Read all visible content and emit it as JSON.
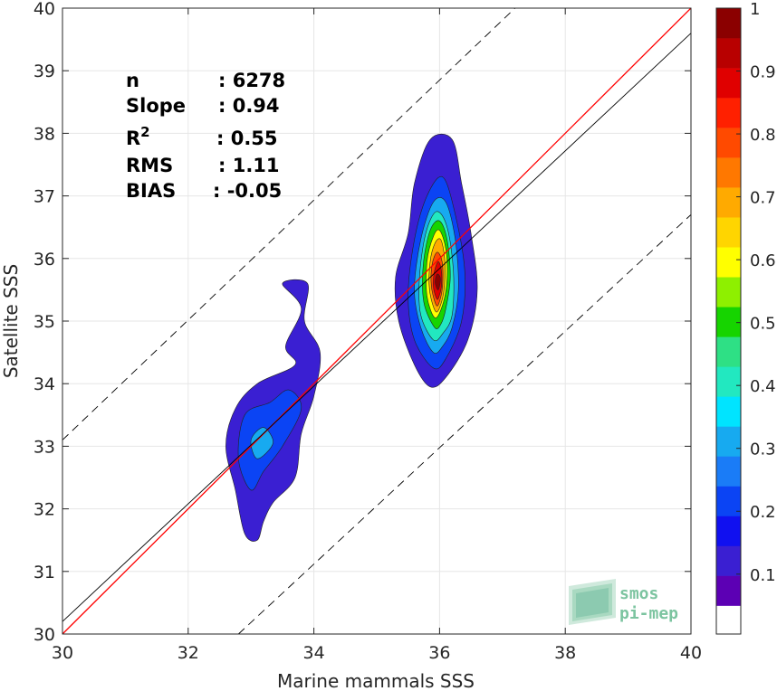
{
  "chart_data": {
    "type": "heatmap",
    "subtype": "normalized 2D density contour (scatter density)",
    "xlabel": "Marine mammals SSS",
    "ylabel": "Satellite SSS",
    "xlim": [
      30,
      40
    ],
    "ylim": [
      30,
      40
    ],
    "xticks": [
      "30",
      "32",
      "34",
      "36",
      "38",
      "40"
    ],
    "yticks": [
      "30",
      "31",
      "32",
      "33",
      "34",
      "35",
      "36",
      "37",
      "38",
      "39",
      "40"
    ],
    "grid": true,
    "stats": [
      {
        "label": "n",
        "value": ": 6278"
      },
      {
        "label": "Slope",
        "value": ": 0.94"
      },
      {
        "label": "R",
        "sup": "2",
        "value": ": 0.55"
      },
      {
        "label": "RMS",
        "value": ": 1.11"
      },
      {
        "label": "BIAS",
        "value": ": -0.05"
      }
    ],
    "lines": [
      {
        "role": "one-to-one",
        "color": "#ff0000",
        "style": "solid",
        "slope": 1,
        "intercept": 0
      },
      {
        "role": "regression fit",
        "color": "#000000",
        "style": "solid",
        "points": [
          [
            30,
            30.2
          ],
          [
            40,
            39.6
          ]
        ]
      },
      {
        "role": "upper bound",
        "color": "#000000",
        "style": "dashed",
        "points": [
          [
            30,
            33.1
          ],
          [
            37.2,
            40.0
          ]
        ]
      },
      {
        "role": "lower bound",
        "color": "#000000",
        "style": "dashed",
        "points": [
          [
            32.8,
            30.0
          ],
          [
            40,
            36.7
          ]
        ]
      }
    ],
    "clusters": [
      {
        "center": [
          33.25,
          33.0
        ],
        "levels": [
          {
            "level": 0.05,
            "points": [
              [
                33.1,
                31.5
              ],
              [
                32.9,
                31.6
              ],
              [
                32.75,
                32.3
              ],
              [
                32.6,
                33.0
              ],
              [
                32.75,
                33.6
              ],
              [
                33.1,
                34.0
              ],
              [
                33.7,
                34.3
              ],
              [
                33.55,
                34.6
              ],
              [
                33.8,
                35.2
              ],
              [
                33.5,
                35.6
              ],
              [
                33.9,
                35.6
              ],
              [
                33.85,
                35.0
              ],
              [
                34.1,
                34.5
              ],
              [
                34.0,
                33.8
              ],
              [
                33.8,
                33.2
              ],
              [
                33.7,
                32.5
              ],
              [
                33.35,
                32.1
              ],
              [
                33.2,
                31.8
              ]
            ]
          },
          {
            "level": 0.15,
            "points": [
              [
                33.0,
                32.3
              ],
              [
                32.8,
                32.8
              ],
              [
                32.9,
                33.5
              ],
              [
                33.3,
                33.7
              ],
              [
                33.6,
                33.9
              ],
              [
                33.8,
                33.6
              ],
              [
                33.5,
                33.0
              ],
              [
                33.2,
                32.6
              ]
            ]
          },
          {
            "level": 0.25,
            "points": [
              [
                33.1,
                32.8
              ],
              [
                33.0,
                33.1
              ],
              [
                33.2,
                33.3
              ],
              [
                33.35,
                33.05
              ]
            ]
          }
        ]
      },
      {
        "center": [
          35.95,
          35.65
        ],
        "levels": [
          {
            "level": 0.05,
            "points": [
              [
                35.85,
                33.95
              ],
              [
                35.6,
                34.3
              ],
              [
                35.35,
                35.0
              ],
              [
                35.3,
                35.7
              ],
              [
                35.5,
                36.4
              ],
              [
                35.6,
                37.2
              ],
              [
                35.85,
                37.9
              ],
              [
                36.2,
                37.9
              ],
              [
                36.35,
                37.2
              ],
              [
                36.5,
                36.4
              ],
              [
                36.6,
                35.5
              ],
              [
                36.45,
                34.7
              ],
              [
                36.1,
                34.1
              ]
            ]
          },
          {
            "level": 0.15,
            "points": [
              [
                35.9,
                34.25
              ],
              [
                35.6,
                34.7
              ],
              [
                35.5,
                35.4
              ],
              [
                35.6,
                36.3
              ],
              [
                35.8,
                37.0
              ],
              [
                36.05,
                37.3
              ],
              [
                36.25,
                36.7
              ],
              [
                36.4,
                35.8
              ],
              [
                36.35,
                35.0
              ],
              [
                36.1,
                34.4
              ]
            ]
          },
          {
            "level": 0.25,
            "points": [
              [
                35.9,
                34.5
              ],
              [
                35.7,
                34.9
              ],
              [
                35.6,
                35.5
              ],
              [
                35.7,
                36.3
              ],
              [
                35.9,
                36.9
              ],
              [
                36.1,
                36.9
              ],
              [
                36.25,
                36.3
              ],
              [
                36.3,
                35.5
              ],
              [
                36.2,
                34.9
              ],
              [
                36.05,
                34.6
              ]
            ]
          },
          {
            "level": 0.35,
            "points": [
              [
                35.9,
                34.7
              ],
              [
                35.7,
                35.1
              ],
              [
                35.68,
                35.7
              ],
              [
                35.78,
                36.4
              ],
              [
                35.95,
                36.75
              ],
              [
                36.12,
                36.5
              ],
              [
                36.22,
                35.8
              ],
              [
                36.2,
                35.1
              ],
              [
                36.05,
                34.8
              ]
            ]
          },
          {
            "level": 0.45,
            "points": [
              [
                35.92,
                34.9
              ],
              [
                35.75,
                35.3
              ],
              [
                35.74,
                35.9
              ],
              [
                35.85,
                36.45
              ],
              [
                36.0,
                36.6
              ],
              [
                36.12,
                36.3
              ],
              [
                36.17,
                35.7
              ],
              [
                36.1,
                35.2
              ],
              [
                36.02,
                34.95
              ]
            ]
          },
          {
            "level": 0.55,
            "points": [
              [
                35.93,
                35.05
              ],
              [
                35.8,
                35.4
              ],
              [
                35.8,
                35.95
              ],
              [
                35.9,
                36.35
              ],
              [
                36.0,
                36.45
              ],
              [
                36.1,
                36.15
              ],
              [
                36.12,
                35.7
              ],
              [
                36.06,
                35.3
              ]
            ]
          },
          {
            "level": 0.65,
            "points": [
              [
                35.94,
                35.15
              ],
              [
                35.84,
                35.5
              ],
              [
                35.85,
                35.95
              ],
              [
                35.93,
                36.25
              ],
              [
                36.02,
                36.3
              ],
              [
                36.08,
                36.0
              ],
              [
                36.08,
                35.6
              ],
              [
                36.03,
                35.3
              ]
            ]
          },
          {
            "level": 0.75,
            "points": [
              [
                35.95,
                35.25
              ],
              [
                35.87,
                35.55
              ],
              [
                35.88,
                35.9
              ],
              [
                35.96,
                36.1
              ],
              [
                36.04,
                35.95
              ],
              [
                36.05,
                35.6
              ],
              [
                36.01,
                35.35
              ]
            ]
          },
          {
            "level": 0.85,
            "points": [
              [
                35.96,
                35.35
              ],
              [
                35.9,
                35.55
              ],
              [
                35.92,
                35.8
              ],
              [
                35.98,
                35.95
              ],
              [
                36.03,
                35.8
              ],
              [
                36.03,
                35.55
              ],
              [
                36.0,
                35.42
              ]
            ]
          },
          {
            "level": 0.95,
            "points": [
              [
                35.97,
                35.5
              ],
              [
                35.93,
                35.62
              ],
              [
                35.96,
                35.75
              ],
              [
                36.01,
                35.7
              ],
              [
                36.0,
                35.56
              ]
            ]
          }
        ]
      }
    ],
    "colorbar": {
      "ticks": [
        "0.1",
        "0.2",
        "0.3",
        "0.4",
        "0.5",
        "0.6",
        "0.7",
        "0.8",
        "0.9",
        "1"
      ],
      "range": [
        0,
        1
      ],
      "bottom_color": "#ffffff",
      "colors": [
        "#5c00b4",
        "#3a1fd2",
        "#1010f0",
        "#0b44f4",
        "#1a7cf7",
        "#17aaf0",
        "#00e4ff",
        "#22e8c0",
        "#2ee085",
        "#16d400",
        "#8ef000",
        "#ffff00",
        "#ffd500",
        "#ffaa00",
        "#ff7800",
        "#ff4a00",
        "#ff2000",
        "#e00000",
        "#b80000",
        "#8b0000"
      ]
    },
    "logo": {
      "line1": "smos",
      "line2": "pi-mep"
    }
  }
}
